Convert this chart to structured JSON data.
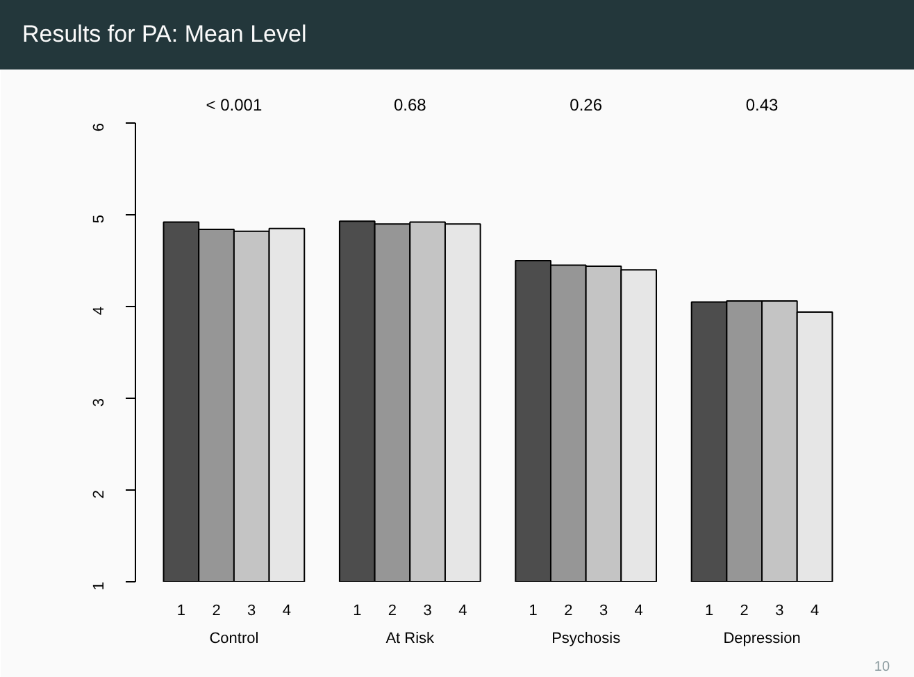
{
  "chart_data": {
    "type": "bar",
    "title": "Results for PA: Mean Level",
    "categories": [
      "Control",
      "At Risk",
      "Psychosis",
      "Depression"
    ],
    "series": [
      {
        "name": "1",
        "color": "#4d4d4d",
        "values": [
          4.92,
          4.93,
          4.5,
          4.05
        ]
      },
      {
        "name": "2",
        "color": "#969696",
        "values": [
          4.84,
          4.9,
          4.45,
          4.06
        ]
      },
      {
        "name": "3",
        "color": "#c4c4c4",
        "values": [
          4.82,
          4.92,
          4.44,
          4.06
        ]
      },
      {
        "name": "4",
        "color": "#e6e6e6",
        "values": [
          4.85,
          4.9,
          4.4,
          3.94
        ]
      }
    ],
    "ylim": [
      1,
      6
    ],
    "yticks": [
      1,
      2,
      3,
      4,
      5,
      6
    ],
    "grid": false,
    "legend": false,
    "annotations": [
      "< 0.001",
      "0.68",
      "0.26",
      "0.43",
      "10"
    ]
  }
}
